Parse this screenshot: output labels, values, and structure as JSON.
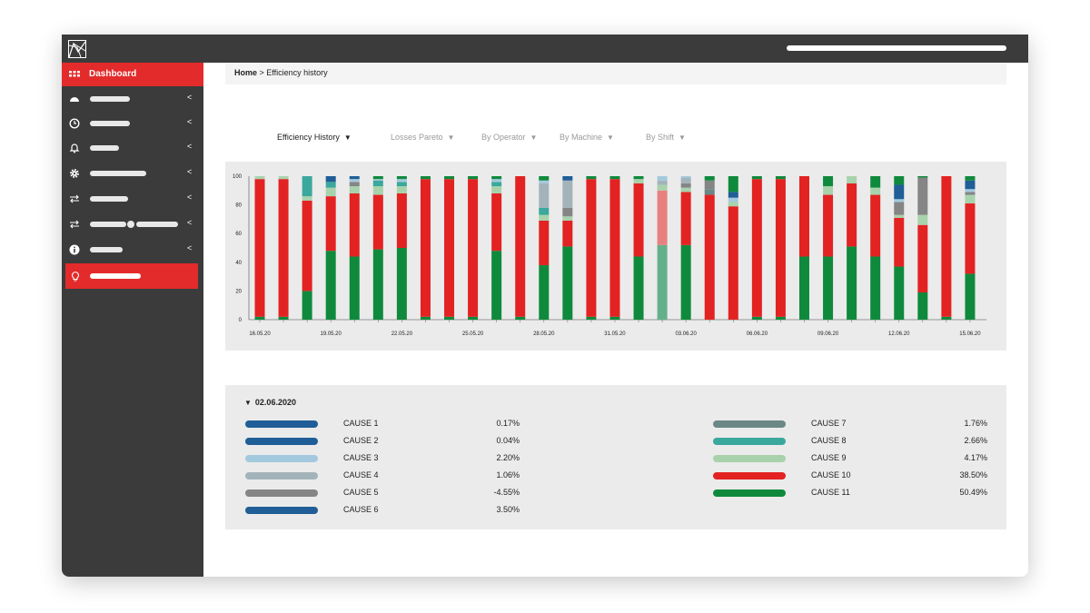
{
  "breadcrumb": {
    "home": "Home",
    "separator": " > ",
    "current": "Efficiency history"
  },
  "sidebar": {
    "dashboard_label": "Dashboard",
    "items": [
      {
        "icon": "gauge-icon"
      },
      {
        "icon": "clock-icon"
      },
      {
        "icon": "bell-icon"
      },
      {
        "icon": "gear-icon"
      },
      {
        "icon": "transfer-icon"
      },
      {
        "icon": "transfer-icon"
      },
      {
        "icon": "info-icon"
      },
      {
        "icon": "lightbulb-icon"
      }
    ]
  },
  "tabs": [
    {
      "label": "Efficiency History",
      "active": true
    },
    {
      "label": "Losses Pareto",
      "active": false
    },
    {
      "label": "By Operator",
      "active": false
    },
    {
      "label": "By Machine",
      "active": false
    },
    {
      "label": "By Shift",
      "active": false
    }
  ],
  "colors": {
    "accent": "#e32b2b",
    "dark": "#3b3b3b"
  },
  "chart_data": {
    "type": "bar",
    "stacked": true,
    "ylim": [
      0,
      100
    ],
    "yticks": [
      0,
      20,
      40,
      60,
      80,
      100
    ],
    "xtick_labels": [
      "16.05.20",
      "19.05.20",
      "22.05.20",
      "25.05.20",
      "28.05.20",
      "31.05.20",
      "03.06.20",
      "06.06.20",
      "09.06.20",
      "12.06.20",
      "15.06.20"
    ],
    "categories": [
      "16.05.20",
      "17.05.20",
      "18.05.20",
      "19.05.20",
      "20.05.20",
      "21.05.20",
      "22.05.20",
      "23.05.20",
      "24.05.20",
      "25.05.20",
      "26.05.20",
      "27.05.20",
      "28.05.20",
      "29.05.20",
      "30.05.20",
      "31.05.20",
      "01.06.20",
      "02.06.20",
      "03.06.20",
      "04.06.20",
      "05.06.20",
      "06.06.20",
      "07.06.20",
      "08.06.20",
      "09.06.20",
      "10.06.20",
      "11.06.20",
      "12.06.20",
      "13.06.20",
      "14.06.20",
      "15.06.20"
    ],
    "cause_colors": {
      "CAUSE 1": "#1f5e96",
      "CAUSE 2": "#1f5e96",
      "CAUSE 3": "#a3c9de",
      "CAUSE 4": "#a3b3ba",
      "CAUSE 5": "#858585",
      "CAUSE 6": "#1f5e96",
      "CAUSE 7": "#6b8886",
      "CAUSE 8": "#3aa89c",
      "CAUSE 9": "#a8d2ab",
      "CAUSE 10": "#e32222",
      "CAUSE 11": "#0f8a3d"
    },
    "bars": [
      {
        "CAUSE 11": 2,
        "CAUSE 10": 96,
        "CAUSE 9": 2
      },
      {
        "CAUSE 11": 2,
        "CAUSE 10": 96,
        "CAUSE 9": 2
      },
      {
        "CAUSE 11": 20,
        "CAUSE 10": 63,
        "CAUSE 9": 3,
        "CAUSE 8": 14
      },
      {
        "CAUSE 11": 48,
        "CAUSE 10": 38,
        "CAUSE 9": 6,
        "CAUSE 8": 4,
        "CAUSE 3": 0,
        "CAUSE 1": 4
      },
      {
        "CAUSE 11": 44,
        "CAUSE 10": 44,
        "CAUSE 9": 5,
        "CAUSE 5": 3,
        "CAUSE 3": 2,
        "CAUSE 1": 2
      },
      {
        "CAUSE 11": 49,
        "CAUSE 10": 38,
        "CAUSE 9": 6,
        "CAUSE 8": 4,
        "CAUSE 3": 1,
        "CAUSE 11_top": 2
      },
      {
        "CAUSE 11": 50,
        "CAUSE 10": 38,
        "CAUSE 9": 5,
        "CAUSE 8": 3,
        "CAUSE 3": 2,
        "CAUSE 11_top": 2
      },
      {
        "CAUSE 11": 2,
        "CAUSE 10": 96,
        "CAUSE 11_top": 2
      },
      {
        "CAUSE 11": 2,
        "CAUSE 10": 96,
        "CAUSE 11_top": 2
      },
      {
        "CAUSE 11": 2,
        "CAUSE 10": 96,
        "CAUSE 11_top": 2
      },
      {
        "CAUSE 11": 48,
        "CAUSE 10": 40,
        "CAUSE 9": 5,
        "CAUSE 8": 3,
        "CAUSE 3": 2,
        "CAUSE 11_top": 2
      },
      {
        "CAUSE 11": 2,
        "CAUSE 10": 98
      },
      {
        "CAUSE 11": 38,
        "CAUSE 10": 31,
        "CAUSE 9": 4,
        "CAUSE 8": 5,
        "CAUSE 4": 17,
        "CAUSE 3": 2,
        "CAUSE 11_top": 3
      },
      {
        "CAUSE 11": 51,
        "CAUSE 10": 18,
        "CAUSE 9": 3,
        "CAUSE 5": 6,
        "CAUSE 4": 19,
        "CAUSE 1": 3
      },
      {
        "CAUSE 11": 2,
        "CAUSE 10": 96,
        "CAUSE 11_top": 2
      },
      {
        "CAUSE 11": 2,
        "CAUSE 10": 96,
        "CAUSE 11_top": 2
      },
      {
        "CAUSE 11": 44,
        "CAUSE 10": 51,
        "CAUSE 9": 3,
        "CAUSE 11_top": 2
      },
      {
        "CAUSE 11": 52,
        "CAUSE 10": 38,
        "CAUSE 9": 4,
        "CAUSE 3": 3,
        "CAUSE 4": 3
      },
      {
        "CAUSE 11": 52,
        "CAUSE 10": 37,
        "CAUSE 9": 3,
        "CAUSE 4": 4,
        "CAUSE 3": 1,
        "CAUSE 5": 3
      },
      {
        "CAUSE 10": 87,
        "CAUSE 11_top": 3,
        "CAUSE 5": 6,
        "CAUSE 9": 0,
        "CAUSE 11": 0,
        "CAUSE 7": 4
      },
      {
        "CAUSE 11": 0,
        "CAUSE 10": 79,
        "CAUSE 11_top": 11,
        "CAUSE 9": 3,
        "CAUSE 3": 3,
        "CAUSE 1": 4
      },
      {
        "CAUSE 11": 2,
        "CAUSE 10": 96,
        "CAUSE 11_top": 2
      },
      {
        "CAUSE 11": 2,
        "CAUSE 10": 96,
        "CAUSE 11_top": 2
      },
      {
        "CAUSE 11": 44,
        "CAUSE 10": 56
      },
      {
        "CAUSE 11": 44,
        "CAUSE 10": 43,
        "CAUSE 9": 6,
        "CAUSE 11_top": 7
      },
      {
        "CAUSE 11": 51,
        "CAUSE 10": 44,
        "CAUSE 9": 5
      },
      {
        "CAUSE 11": 44,
        "CAUSE 10": 43,
        "CAUSE 9": 5,
        "CAUSE 11_top": 8
      },
      {
        "CAUSE 11": 37,
        "CAUSE 10": 34,
        "CAUSE 9": 2,
        "CAUSE 1": 10,
        "CAUSE 3": 2,
        "CAUSE 5": 9,
        "CAUSE 11_top": 6
      },
      {
        "CAUSE 11": 19,
        "CAUSE 10": 47,
        "CAUSE 9": 7,
        "CAUSE 5": 26,
        "CAUSE 11_top": 1
      },
      {
        "CAUSE 11": 2,
        "CAUSE 10": 98
      },
      {
        "CAUSE 11": 32,
        "CAUSE 10": 49,
        "CAUSE 9": 6,
        "CAUSE 1": 6,
        "CAUSE 3": 2,
        "CAUSE 5": 2,
        "CAUSE 11_top": 3
      }
    ],
    "highlighted_category": "02.06.20",
    "highlight_colors": {
      "CAUSE 10": "#e88080",
      "CAUSE 11": "#64b08a"
    }
  },
  "legend": {
    "title": "02.06.2020",
    "left": [
      {
        "name": "CAUSE 1",
        "value": "0.17%",
        "color": "#1f5e96"
      },
      {
        "name": "CAUSE 2",
        "value": "0.04%",
        "color": "#1f5e96"
      },
      {
        "name": "CAUSE 3",
        "value": "2.20%",
        "color": "#a3c9de"
      },
      {
        "name": "CAUSE 4",
        "value": "1.06%",
        "color": "#a3b3ba"
      },
      {
        "name": "CAUSE 5",
        "value": "-4.55%",
        "color": "#858585"
      },
      {
        "name": "CAUSE 6",
        "value": "3.50%",
        "color": "#1f5e96"
      }
    ],
    "right": [
      {
        "name": "CAUSE 7",
        "value": "1.76%",
        "color": "#6b8886"
      },
      {
        "name": "CAUSE 8",
        "value": "2.66%",
        "color": "#3aa89c"
      },
      {
        "name": "CAUSE 9",
        "value": "4.17%",
        "color": "#a8d2ab"
      },
      {
        "name": "CAUSE 10",
        "value": "38.50%",
        "color": "#e32222"
      },
      {
        "name": "CAUSE 11",
        "value": "50.49%",
        "color": "#0f8a3d"
      }
    ]
  }
}
